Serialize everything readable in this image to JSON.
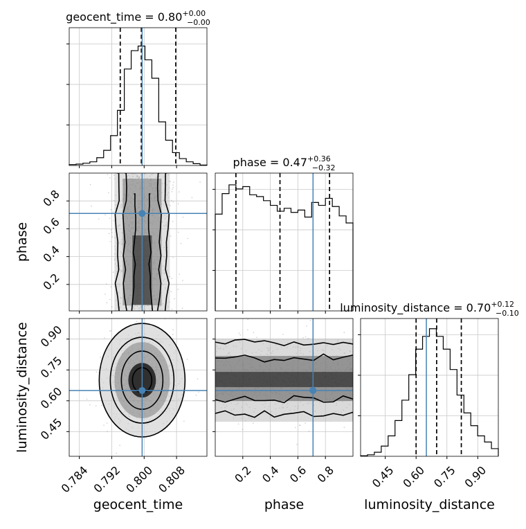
{
  "chart_data": {
    "type": "corner",
    "parameters": [
      "geocent_time",
      "phase",
      "luminosity_distance"
    ],
    "truth": {
      "geocent_time": 0.7995,
      "phase": 0.71,
      "luminosity_distance": 0.65
    },
    "grid": true,
    "marginals": [
      {
        "parameter": "geocent_time",
        "title": {
          "main": "geocent_time = 0.80",
          "sup": "+0.00",
          "sub": "−0.00"
        },
        "x_range": [
          0.7815,
          0.8155
        ],
        "quantiles": [
          0.7941,
          0.7993,
          0.8078
        ],
        "bins": [
          0.7815,
          0.7832,
          0.7849,
          0.7866,
          0.7883,
          0.79,
          0.7917,
          0.7934,
          0.7951,
          0.7968,
          0.7985,
          0.8002,
          0.8019,
          0.8036,
          0.8053,
          0.807,
          0.8087,
          0.8104,
          0.8121,
          0.8138,
          0.8155
        ],
        "counts": [
          2,
          3,
          5,
          8,
          17,
          33,
          65,
          120,
          210,
          250,
          260,
          230,
          190,
          95,
          55,
          28,
          15,
          8,
          4,
          1
        ],
        "y_max": 300
      },
      {
        "parameter": "phase",
        "title": {
          "main": "phase = 0.47",
          "sup": "+0.36",
          "sub": "−0.32"
        },
        "x_range": [
          0.0,
          1.0
        ],
        "quantiles": [
          0.15,
          0.47,
          0.83
        ],
        "bins": [
          0,
          0.05,
          0.1,
          0.15,
          0.2,
          0.25,
          0.3,
          0.35,
          0.4,
          0.45,
          0.5,
          0.55,
          0.6,
          0.65,
          0.7,
          0.75,
          0.8,
          0.85,
          0.9,
          0.95,
          1.0
        ],
        "counts": [
          165,
          200,
          215,
          208,
          212,
          198,
          195,
          188,
          180,
          170,
          175,
          168,
          172,
          160,
          185,
          180,
          192,
          178,
          162,
          150
        ],
        "y_max": 235
      },
      {
        "parameter": "luminosity_distance",
        "title": {
          "main": "luminosity_distance = 0.70",
          "sup": "+0.12",
          "sub": "−0.10"
        },
        "x_range": [
          0.33,
          1.0
        ],
        "quantiles": [
          0.6,
          0.7,
          0.82
        ],
        "bins": [
          0.33,
          0.3635,
          0.397,
          0.4305,
          0.464,
          0.4975,
          0.531,
          0.5645,
          0.598,
          0.6315,
          0.665,
          0.6985,
          0.732,
          0.7655,
          0.799,
          0.8325,
          0.866,
          0.8995,
          0.933,
          0.9665,
          1.0
        ],
        "counts": [
          1,
          3,
          8,
          20,
          40,
          70,
          110,
          160,
          210,
          235,
          250,
          235,
          210,
          170,
          120,
          85,
          60,
          40,
          28,
          15
        ],
        "y_max": 270
      }
    ],
    "joints": [
      {
        "x": "geocent_time",
        "y": "phase",
        "x_range": [
          0.7815,
          0.8155
        ],
        "y_range": [
          0.01,
          1.0
        ]
      },
      {
        "x": "geocent_time",
        "y": "luminosity_distance",
        "x_range": [
          0.7815,
          0.8155
        ],
        "y_range": [
          0.33,
          1.0
        ]
      },
      {
        "x": "phase",
        "y": "luminosity_distance",
        "x_range": [
          0.0,
          1.0
        ],
        "y_range": [
          0.33,
          1.0
        ]
      }
    ],
    "x_ticks": {
      "geocent_time": [
        "0.784",
        "0.792",
        "0.800",
        "0.808"
      ],
      "phase": [
        "0.2",
        "0.4",
        "0.6",
        "0.8"
      ],
      "luminosity_distance": [
        "0.45",
        "0.60",
        "0.75",
        "0.90"
      ]
    },
    "y_ticks": {
      "phase": [
        "0.2",
        "0.4",
        "0.6",
        "0.8"
      ],
      "luminosity_distance": [
        "0.45",
        "0.60",
        "0.75",
        "0.90"
      ]
    },
    "xlabels": [
      "geocent_time",
      "phase",
      "luminosity_distance"
    ],
    "ylabels": [
      "",
      "phase",
      "luminosity_distance"
    ],
    "colors": {
      "truth": "#4682b4",
      "hist": "#000000",
      "grid": "#c8c8c8",
      "scatter": "#888888"
    }
  }
}
